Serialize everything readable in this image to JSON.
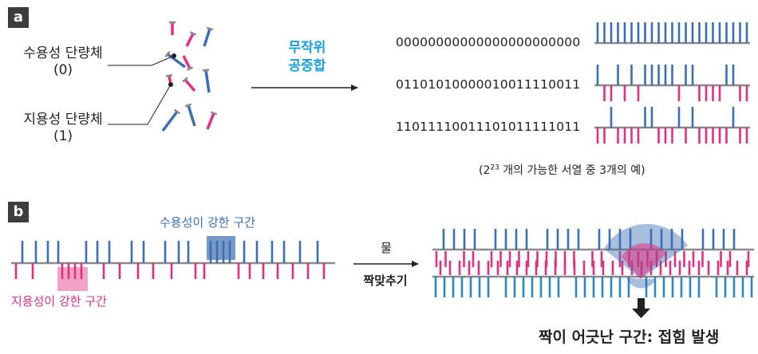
{
  "panel_a": {
    "tag": "a",
    "hydrophilic_label": "수용성 단량체",
    "hydrophilic_code": "(0)",
    "hydrophobic_label": "지용성 단량체",
    "hydrophobic_code": "(1)",
    "process_line1": "무작위",
    "process_line2": "공중합",
    "sequences": [
      "00000000000000000000000",
      "01101010000010011110011",
      "11011110011101011111011"
    ],
    "caption_prefix": "(2",
    "caption_sup": "23",
    "caption_rest": " 개의 가능한 서열 중 3개의 예)"
  },
  "panel_b": {
    "tag": "b",
    "hydrophilic_region_label": "수용성이 강한 구간",
    "hydrophobic_region_label": "지용성이 강한 구간",
    "arrow_top_label": "물",
    "arrow_bottom_label": "짝맞추기",
    "result_label": "짝이 어긋난 구간: 접힘 발생"
  },
  "colors": {
    "hydrophilic": "#3d6eb4",
    "hydrophobic": "#e0307f",
    "accent_text": "#1aa0dc",
    "backbone": "#8a8a8a",
    "dark": "#222222"
  }
}
